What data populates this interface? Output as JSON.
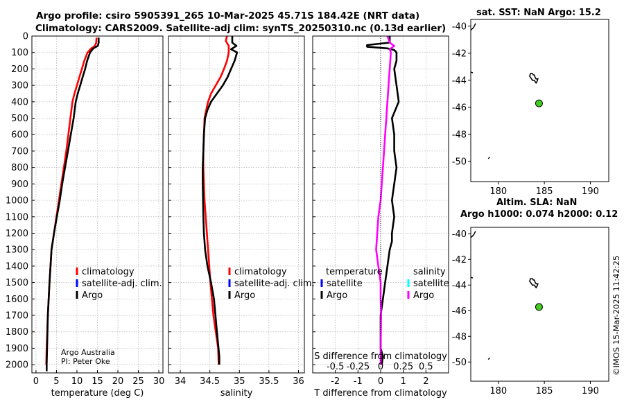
{
  "header": {
    "line1": "Argo profile: csiro 5905391_265 10-Mar-2025 45.71S 184.42E (NRT data)",
    "line2": "Climatology: CARS2009. Satellite-adj clim: synTS_20250310.nc (0.13d earlier)"
  },
  "side_stamp": "©IMOS 15-Mar-2025 11:42:25",
  "credits": {
    "line1": "Argo Australia",
    "line2": "PI: Peter Oke"
  },
  "colors": {
    "climatology": "#ff0000",
    "satellite": "#0000ff",
    "argo": "#000000",
    "salinity_argo": "#ff00ff",
    "salinity_satellite": "#00ffff",
    "grid": "#b0b0b0",
    "marker": "#44cc22"
  },
  "legend": {
    "climatology": "climatology",
    "satellite": "satellite-adj. clim.",
    "argo": "Argo",
    "temperature": "temperature",
    "salinity": "salinity",
    "satellite_short": "satellite"
  },
  "chart_data": [
    {
      "id": "temperature",
      "type": "line",
      "xlabel": "temperature (deg C)",
      "ylabel": "",
      "xlim": [
        -1,
        31
      ],
      "ylim": [
        2050,
        0
      ],
      "xticks": [
        0,
        5,
        10,
        15,
        20,
        25,
        30
      ],
      "yticks": [
        0,
        100,
        200,
        300,
        400,
        500,
        600,
        700,
        800,
        900,
        1000,
        1100,
        1200,
        1300,
        1400,
        1500,
        1600,
        1700,
        1800,
        1900,
        2000
      ],
      "series": [
        {
          "name": "climatology",
          "color": "#ff0000",
          "x": [
            14.8,
            14.7,
            14.4,
            13.5,
            12.6,
            11.8,
            11.2,
            10.6,
            10.0,
            9.4,
            8.9,
            8.4,
            7.9,
            7.4,
            6.8,
            6.2,
            5.6,
            5.0,
            4.4,
            3.8,
            3.3,
            2.9,
            2.6,
            2.5
          ],
          "y": [
            10,
            40,
            60,
            75,
            100,
            150,
            200,
            250,
            300,
            350,
            400,
            500,
            600,
            700,
            800,
            900,
            1000,
            1100,
            1200,
            1300,
            1500,
            1700,
            1900,
            2000
          ]
        },
        {
          "name": "Argo",
          "color": "#000000",
          "x": [
            15.3,
            15.3,
            15.1,
            14.0,
            13.2,
            12.5,
            12.0,
            11.4,
            10.8,
            10.2,
            9.7,
            9.2,
            8.5,
            7.8,
            7.1,
            6.4,
            5.8,
            5.1,
            4.4,
            3.8,
            3.3,
            2.9,
            2.7,
            2.6,
            2.6
          ],
          "y": [
            10,
            40,
            60,
            75,
            100,
            150,
            200,
            250,
            300,
            350,
            400,
            500,
            600,
            700,
            800,
            900,
            1000,
            1100,
            1200,
            1300,
            1500,
            1700,
            1900,
            2000,
            2040
          ]
        }
      ]
    },
    {
      "id": "salinity",
      "type": "line",
      "xlabel": "salinity",
      "ylabel": "",
      "xlim": [
        33.8,
        36.1
      ],
      "ylim": [
        2050,
        0
      ],
      "xticks": [
        34,
        34.5,
        35,
        35.5,
        36
      ],
      "xticklabels": [
        "34",
        "34.5",
        "35",
        "35.5",
        "36"
      ],
      "yticks": [
        0,
        100,
        200,
        300,
        400,
        500,
        600,
        700,
        800,
        900,
        1000,
        1100,
        1200,
        1300,
        1400,
        1500,
        1600,
        1700,
        1800,
        1900,
        2000
      ],
      "series": [
        {
          "name": "climatology",
          "color": "#ff0000",
          "x": [
            34.79,
            34.77,
            34.82,
            34.82,
            34.79,
            34.74,
            34.68,
            34.6,
            34.52,
            34.47,
            34.44,
            34.41,
            34.4,
            34.39,
            34.39,
            34.4,
            34.41,
            34.43,
            34.47,
            34.51,
            34.56,
            34.6,
            34.64,
            34.65
          ],
          "y": [
            0,
            30,
            60,
            100,
            150,
            200,
            250,
            300,
            350,
            400,
            450,
            500,
            600,
            700,
            800,
            900,
            1000,
            1100,
            1300,
            1500,
            1700,
            1800,
            1900,
            2000
          ]
        },
        {
          "name": "Argo",
          "color": "#000000",
          "x": [
            34.88,
            34.88,
            34.95,
            34.86,
            34.96,
            34.92,
            34.86,
            34.8,
            34.72,
            34.62,
            34.52,
            34.46,
            34.42,
            34.4,
            34.39,
            34.38,
            34.38,
            34.39,
            34.4,
            34.42,
            34.46,
            34.52,
            34.57,
            34.62,
            34.66,
            34.66
          ],
          "y": [
            0,
            40,
            60,
            80,
            100,
            150,
            200,
            250,
            300,
            350,
            400,
            450,
            500,
            600,
            700,
            800,
            900,
            1100,
            1200,
            1300,
            1400,
            1500,
            1600,
            1800,
            1950,
            2000
          ]
        }
      ]
    },
    {
      "id": "differences",
      "type": "line",
      "xlabel": "T difference from climatology",
      "xlabel_top": "S difference from climatology",
      "xlim": [
        -3,
        3
      ],
      "ylim": [
        2050,
        0
      ],
      "xticks": [
        -2,
        -1,
        0,
        1,
        2
      ],
      "xticklabels": [
        "-2",
        "-1",
        "0",
        "1",
        "2"
      ],
      "sticks_labels": [
        "-0.5",
        "-0.25",
        "0",
        "0.25",
        "0.5"
      ],
      "sticks_x": [
        -2,
        -1,
        0,
        1,
        2
      ],
      "yticks": [
        0,
        100,
        200,
        300,
        400,
        500,
        600,
        700,
        800,
        900,
        1000,
        1100,
        1200,
        1300,
        1400,
        1500,
        1600,
        1700,
        1800,
        1900,
        2000
      ],
      "series": [
        {
          "name": "temperature Argo",
          "color": "#000000",
          "x": [
            0.4,
            0.4,
            -0.6,
            -0.6,
            0.3,
            0.6,
            0.7,
            0.7,
            0.6,
            0.7,
            0.8,
            0.5,
            0.6,
            0.6,
            0.7,
            0.6,
            0.5,
            0.6,
            0.5,
            0.5,
            0.4,
            0.3,
            0.2,
            0.1,
            0.0,
            0.0,
            0.0,
            0.1,
            0.05
          ],
          "y": [
            0,
            40,
            55,
            65,
            75,
            85,
            100,
            150,
            200,
            300,
            400,
            500,
            600,
            700,
            800,
            900,
            1000,
            1100,
            1200,
            1250,
            1300,
            1400,
            1500,
            1600,
            1700,
            1800,
            1900,
            1950,
            2000
          ]
        },
        {
          "name": "salinity Argo",
          "color": "#ff00ff",
          "x": [
            0.3,
            0.4,
            0.6,
            0.4,
            0.45,
            0.4,
            0.35,
            0.3,
            0.25,
            0.2,
            0.15,
            0.1,
            0.05,
            0.0,
            -0.1,
            -0.15,
            -0.2,
            -0.15,
            -0.1,
            0.0,
            0.0,
            0.02,
            0.0,
            0.0
          ],
          "y": [
            0,
            40,
            60,
            80,
            100,
            200,
            300,
            400,
            500,
            600,
            700,
            800,
            900,
            1000,
            1100,
            1200,
            1300,
            1350,
            1400,
            1500,
            1600,
            1700,
            1900,
            2000
          ]
        }
      ]
    },
    {
      "id": "map_sst",
      "type": "scatter",
      "title": "sat. SST: NaN Argo: 15.2",
      "xlim": [
        177,
        192
      ],
      "ylim": [
        -51.5,
        -39.5
      ],
      "xticks": [
        180,
        185,
        190
      ],
      "yticks": [
        -40,
        -42,
        -44,
        -46,
        -48,
        -50
      ],
      "yticklabels": [
        "-40",
        "-42",
        "-44",
        "-46",
        "-48",
        "-50"
      ],
      "x": [
        184.42
      ],
      "y": [
        -45.71
      ]
    },
    {
      "id": "map_sla",
      "type": "scatter",
      "title_line1": "Altim. SLA: NaN",
      "title_line2": "Argo h1000: 0.074 h2000: 0.12",
      "xlim": [
        177,
        192
      ],
      "ylim": [
        -51.5,
        -39.5
      ],
      "xticks": [
        180,
        185,
        190
      ],
      "yticks": [
        -40,
        -42,
        -44,
        -46,
        -48,
        -50
      ],
      "yticklabels": [
        "-40",
        "-42",
        "-44",
        "-46",
        "-48",
        "-50"
      ],
      "x": [
        184.42
      ],
      "y": [
        -45.71
      ]
    }
  ]
}
